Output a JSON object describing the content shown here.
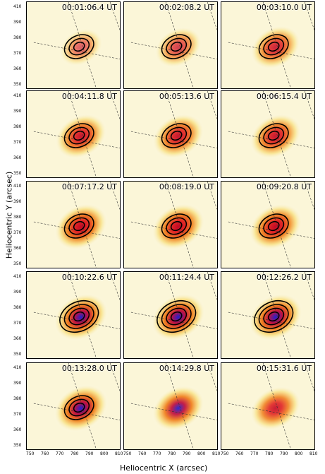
{
  "figure": {
    "ylabel": "Heliocentric Y (arcsec)",
    "xlabel": "Heliocentric X (arcsec)",
    "x_ticks": [
      "750",
      "760",
      "770",
      "780",
      "790",
      "800",
      "810"
    ],
    "y_ticks": [
      "410",
      "390",
      "380",
      "370",
      "360",
      "350"
    ],
    "panels": [
      {
        "time": "00:01:06.4 UT"
      },
      {
        "time": "00:02:08.2 UT"
      },
      {
        "time": "00:03:10.0 UT"
      },
      {
        "time": "00:04:11.8 UT"
      },
      {
        "time": "00:05:13.6 UT"
      },
      {
        "time": "00:06:15.4 UT"
      },
      {
        "time": "00:07:17.2 UT"
      },
      {
        "time": "00:08:19.0 UT"
      },
      {
        "time": "00:09:20.8 UT"
      },
      {
        "time": "00:10:22.6 UT"
      },
      {
        "time": "00:11:24.4 UT"
      },
      {
        "time": "00:12:26.2 UT"
      },
      {
        "time": "00:13:28.0 UT"
      },
      {
        "time": "00:14:29.8 UT"
      },
      {
        "time": "00:15:31.6 UT"
      }
    ]
  }
}
